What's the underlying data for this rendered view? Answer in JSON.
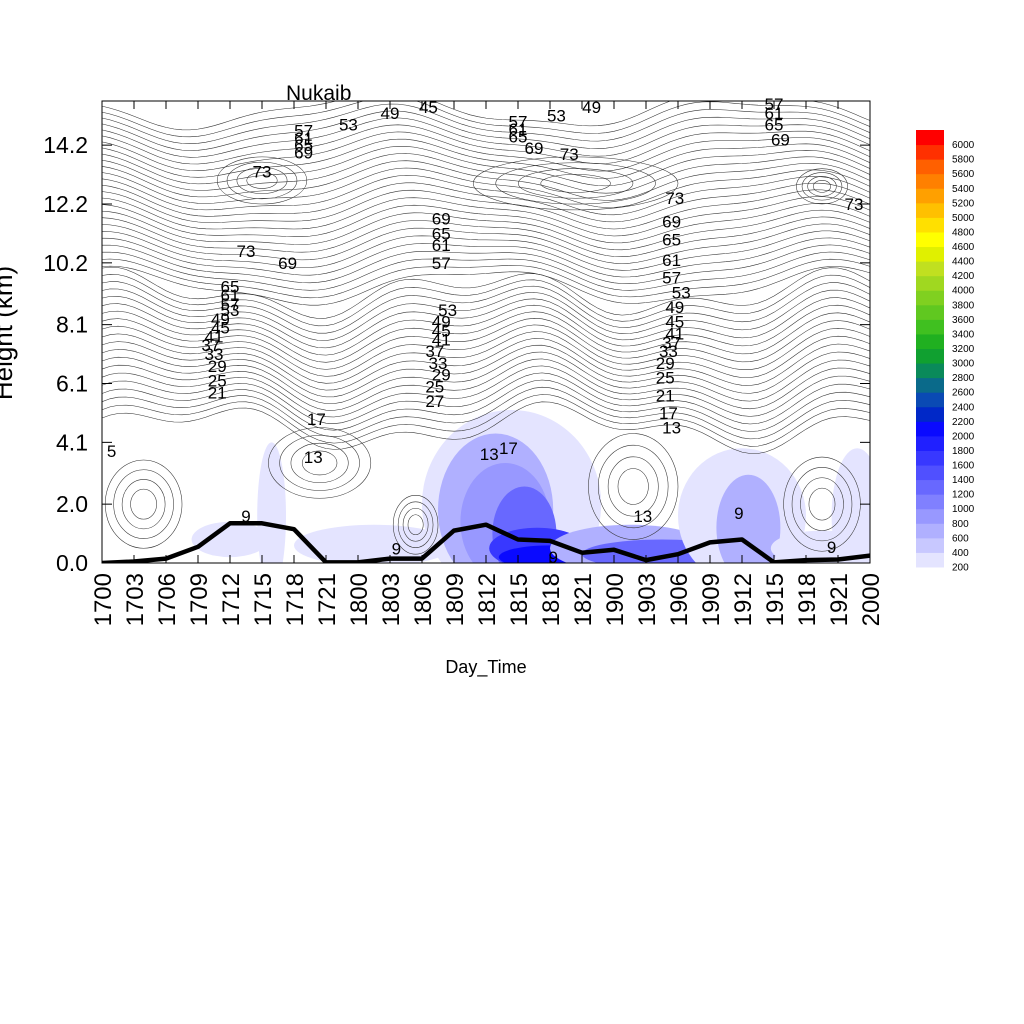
{
  "chart_data": {
    "type": "contour",
    "title": "Nukaib",
    "xlabel": "Day_Time",
    "ylabel": "Height (km)",
    "x_ticks": [
      "1700",
      "1703",
      "1706",
      "1709",
      "1712",
      "1715",
      "1718",
      "1721",
      "1800",
      "1803",
      "1806",
      "1809",
      "1812",
      "1815",
      "1818",
      "1821",
      "1900",
      "1903",
      "1906",
      "1909",
      "1912",
      "1915",
      "1918",
      "1921",
      "2000"
    ],
    "y_ticks": [
      "0.0",
      "2.0",
      "4.1",
      "6.1",
      "8.1",
      "10.2",
      "12.2",
      "14.2"
    ],
    "ylim": [
      0.0,
      15.7
    ],
    "colorbar": {
      "levels": [
        200,
        400,
        600,
        800,
        1000,
        1200,
        1400,
        1600,
        1800,
        2000,
        2200,
        2400,
        2600,
        2800,
        3000,
        3200,
        3400,
        3600,
        3800,
        4000,
        4200,
        4400,
        4600,
        4800,
        5000,
        5200,
        5400,
        5600,
        5800,
        6000
      ],
      "colors": [
        "#e4e4ff",
        "#c8c8ff",
        "#b0b0ff",
        "#9898ff",
        "#8080ff",
        "#6868ff",
        "#5050ff",
        "#3838ff",
        "#2020ff",
        "#0a0aff",
        "#0028c8",
        "#0a4ab4",
        "#0a6a8a",
        "#0a8a5a",
        "#10a030",
        "#20b020",
        "#40c020",
        "#60c820",
        "#80d020",
        "#a0d820",
        "#c0e020",
        "#e0f000",
        "#ffff00",
        "#ffe000",
        "#ffc000",
        "#ffa000",
        "#ff8000",
        "#ff6000",
        "#ff3000",
        "#ff0000"
      ]
    },
    "line_series": {
      "name": "",
      "x": [
        "1700",
        "1703",
        "1706",
        "1709",
        "1712",
        "1715",
        "1718",
        "1721",
        "1800",
        "1803",
        "1806",
        "1809",
        "1812",
        "1815",
        "1818",
        "1821",
        "1900",
        "1903",
        "1906",
        "1909",
        "1912",
        "1915",
        "1918",
        "1921",
        "2000"
      ],
      "y": [
        0.0,
        0.05,
        0.15,
        0.55,
        1.35,
        1.35,
        1.15,
        0.02,
        0.02,
        0.15,
        0.15,
        1.1,
        1.3,
        0.8,
        0.75,
        0.35,
        0.45,
        0.1,
        0.3,
        0.7,
        0.8,
        0.02,
        0.1,
        0.12,
        0.25
      ]
    },
    "contour_labels": [
      {
        "text": "45",
        "x": 10.2,
        "y": 15.5
      },
      {
        "text": "49",
        "x": 9.0,
        "y": 15.3
      },
      {
        "text": "53",
        "x": 7.7,
        "y": 14.9
      },
      {
        "text": "57",
        "x": 6.3,
        "y": 14.7
      },
      {
        "text": "61",
        "x": 6.3,
        "y": 14.45
      },
      {
        "text": "65",
        "x": 6.3,
        "y": 14.2
      },
      {
        "text": "69",
        "x": 6.3,
        "y": 13.95
      },
      {
        "text": "73",
        "x": 5.0,
        "y": 13.3
      },
      {
        "text": "49",
        "x": 15.3,
        "y": 15.5
      },
      {
        "text": "53",
        "x": 14.2,
        "y": 15.2
      },
      {
        "text": "57",
        "x": 13.0,
        "y": 15.0
      },
      {
        "text": "61",
        "x": 13.0,
        "y": 14.75
      },
      {
        "text": "65",
        "x": 13.0,
        "y": 14.5
      },
      {
        "text": "69",
        "x": 13.5,
        "y": 14.1
      },
      {
        "text": "73",
        "x": 14.6,
        "y": 13.9
      },
      {
        "text": "57",
        "x": 21.0,
        "y": 15.6
      },
      {
        "text": "61",
        "x": 21.0,
        "y": 15.3
      },
      {
        "text": "65",
        "x": 21.0,
        "y": 14.9
      },
      {
        "text": "69",
        "x": 21.2,
        "y": 14.4
      },
      {
        "text": "73",
        "x": 17.9,
        "y": 12.4
      },
      {
        "text": "73",
        "x": 23.5,
        "y": 12.2
      },
      {
        "text": "69",
        "x": 10.6,
        "y": 11.7
      },
      {
        "text": "65",
        "x": 10.6,
        "y": 11.2
      },
      {
        "text": "61",
        "x": 10.6,
        "y": 10.8
      },
      {
        "text": "57",
        "x": 10.6,
        "y": 10.2
      },
      {
        "text": "53",
        "x": 10.8,
        "y": 8.6
      },
      {
        "text": "49",
        "x": 10.6,
        "y": 8.2
      },
      {
        "text": "45",
        "x": 10.6,
        "y": 7.9
      },
      {
        "text": "41",
        "x": 10.6,
        "y": 7.6
      },
      {
        "text": "37",
        "x": 10.4,
        "y": 7.2
      },
      {
        "text": "33",
        "x": 10.5,
        "y": 6.8
      },
      {
        "text": "29",
        "x": 10.6,
        "y": 6.4
      },
      {
        "text": "25",
        "x": 10.4,
        "y": 6.0
      },
      {
        "text": "27",
        "x": 10.4,
        "y": 5.5
      },
      {
        "text": "73",
        "x": 4.5,
        "y": 10.6
      },
      {
        "text": "69",
        "x": 5.8,
        "y": 10.2
      },
      {
        "text": "65",
        "x": 4.0,
        "y": 9.4
      },
      {
        "text": "61",
        "x": 4.0,
        "y": 9.1
      },
      {
        "text": "57",
        "x": 4.0,
        "y": 8.8
      },
      {
        "text": "53",
        "x": 4.0,
        "y": 8.6
      },
      {
        "text": "49",
        "x": 3.7,
        "y": 8.3
      },
      {
        "text": "45",
        "x": 3.7,
        "y": 8.0
      },
      {
        "text": "41",
        "x": 3.5,
        "y": 7.7
      },
      {
        "text": "37",
        "x": 3.4,
        "y": 7.4
      },
      {
        "text": "33",
        "x": 3.5,
        "y": 7.1
      },
      {
        "text": "29",
        "x": 3.6,
        "y": 6.7
      },
      {
        "text": "25",
        "x": 3.6,
        "y": 6.2
      },
      {
        "text": "21",
        "x": 3.6,
        "y": 5.8
      },
      {
        "text": "69",
        "x": 17.8,
        "y": 11.6
      },
      {
        "text": "65",
        "x": 17.8,
        "y": 11.0
      },
      {
        "text": "61",
        "x": 17.8,
        "y": 10.3
      },
      {
        "text": "57",
        "x": 17.8,
        "y": 9.7
      },
      {
        "text": "53",
        "x": 18.1,
        "y": 9.2
      },
      {
        "text": "49",
        "x": 17.9,
        "y": 8.7
      },
      {
        "text": "45",
        "x": 17.9,
        "y": 8.2
      },
      {
        "text": "41",
        "x": 17.9,
        "y": 7.8
      },
      {
        "text": "37",
        "x": 17.8,
        "y": 7.5
      },
      {
        "text": "33",
        "x": 17.7,
        "y": 7.2
      },
      {
        "text": "29",
        "x": 17.6,
        "y": 6.8
      },
      {
        "text": "25",
        "x": 17.6,
        "y": 6.3
      },
      {
        "text": "21",
        "x": 17.6,
        "y": 5.7
      },
      {
        "text": "17",
        "x": 17.7,
        "y": 5.1
      },
      {
        "text": "13",
        "x": 17.8,
        "y": 4.6
      },
      {
        "text": "17",
        "x": 6.7,
        "y": 4.9
      },
      {
        "text": "13",
        "x": 6.6,
        "y": 3.6
      },
      {
        "text": "5",
        "x": 0.3,
        "y": 3.8
      },
      {
        "text": "17",
        "x": 12.7,
        "y": 3.9
      },
      {
        "text": "13",
        "x": 12.1,
        "y": 3.7
      },
      {
        "text": "9",
        "x": 4.5,
        "y": 1.6
      },
      {
        "text": "9",
        "x": 9.2,
        "y": 0.5
      },
      {
        "text": "9",
        "x": 14.1,
        "y": 0.2
      },
      {
        "text": "13",
        "x": 16.9,
        "y": 1.6
      },
      {
        "text": "9",
        "x": 19.9,
        "y": 1.7
      },
      {
        "text": "9",
        "x": 22.8,
        "y": 0.55
      }
    ]
  }
}
